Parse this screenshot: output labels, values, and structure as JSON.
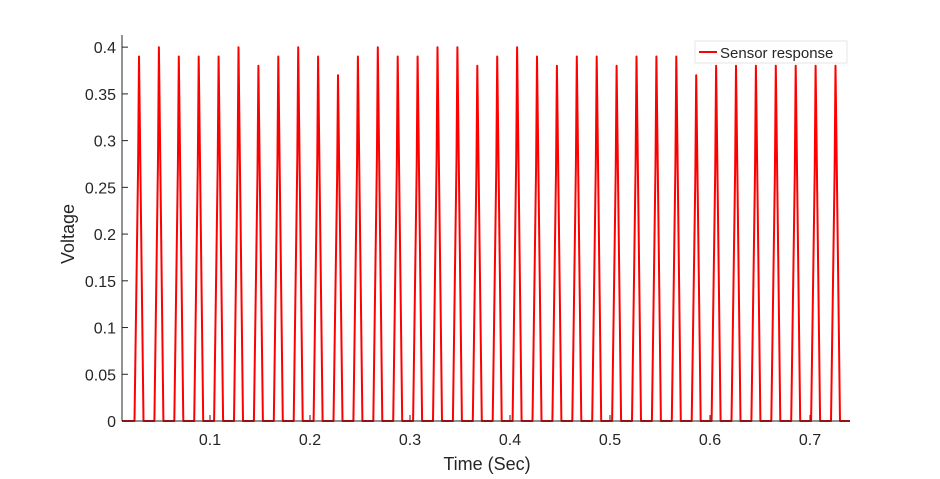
{
  "chart_data": {
    "type": "line",
    "title": "",
    "xlabel": "Time (Sec)",
    "ylabel": "Voltage",
    "xlim": [
      0.012,
      0.74
    ],
    "ylim": [
      0,
      0.413
    ],
    "xticks": [
      0.1,
      0.2,
      0.3,
      0.4,
      0.5,
      0.6,
      0.7
    ],
    "xtick_labels": [
      "0.1",
      "0.2",
      "0.3",
      "0.4",
      "0.5",
      "0.6",
      "0.7"
    ],
    "yticks": [
      0,
      0.05,
      0.1,
      0.15,
      0.2,
      0.25,
      0.3,
      0.35,
      0.4
    ],
    "ytick_labels": [
      "0",
      "0.05",
      "0.1",
      "0.15",
      "0.2",
      "0.25",
      "0.3",
      "0.35",
      "0.4"
    ],
    "grid": false,
    "legend_position": "top-right",
    "series": [
      {
        "name": "Sensor response",
        "color": "#ff0000",
        "description_of_shape": "pulse train; each pulse rises from 0 to the peak and falls back to 0",
        "peak_times": [
          0.029,
          0.0489,
          0.0688,
          0.0887,
          0.1086,
          0.1285,
          0.1484,
          0.1683,
          0.1882,
          0.2081,
          0.228,
          0.2479,
          0.2678,
          0.2877,
          0.3076,
          0.3275,
          0.3474,
          0.3673,
          0.3872,
          0.4071,
          0.427,
          0.4469,
          0.4668,
          0.4867,
          0.5066,
          0.5265,
          0.5464,
          0.5663,
          0.5862,
          0.6061,
          0.626,
          0.6459,
          0.6658,
          0.6857,
          0.7056,
          0.7255
        ],
        "peak_values": [
          0.39,
          0.4,
          0.39,
          0.39,
          0.39,
          0.4,
          0.38,
          0.39,
          0.4,
          0.39,
          0.37,
          0.39,
          0.4,
          0.39,
          0.39,
          0.4,
          0.4,
          0.38,
          0.39,
          0.4,
          0.39,
          0.38,
          0.39,
          0.39,
          0.38,
          0.39,
          0.39,
          0.39,
          0.37,
          0.38,
          0.38,
          0.38,
          0.38,
          0.38,
          0.38,
          0.38
        ]
      }
    ]
  }
}
